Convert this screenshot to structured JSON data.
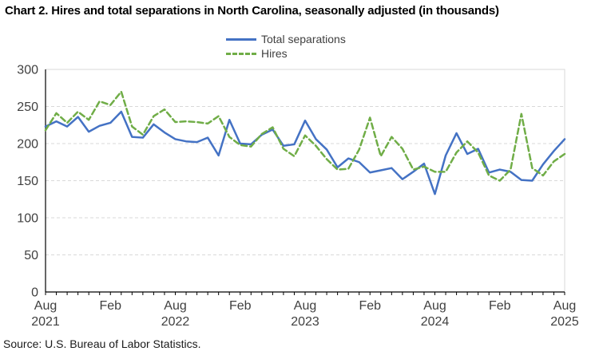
{
  "title": "Chart 2. Hires and total separations in North Carolina, seasonally adjusted (in thousands)",
  "source": "Source: U.S. Bureau of Labor Statistics.",
  "legend": [
    {
      "label": "Total separations",
      "color": "#4472c4",
      "style": "solid"
    },
    {
      "label": "Hires",
      "color": "#70ad47",
      "style": "dashed"
    }
  ],
  "chart_data": {
    "type": "line",
    "title": "Chart 2. Hires and total separations in North Carolina, seasonally adjusted (in thousands)",
    "xlabel": "",
    "ylabel": "",
    "ylim": [
      0,
      300
    ],
    "yticks": [
      0,
      50,
      100,
      150,
      200,
      250,
      300
    ],
    "grid": "horizontal-dashed",
    "legend_position": "top-center",
    "x": [
      "Aug 2021",
      "Sep 2021",
      "Oct 2021",
      "Nov 2021",
      "Dec 2021",
      "Jan 2022",
      "Feb 2022",
      "Mar 2022",
      "Apr 2022",
      "May 2022",
      "Jun 2022",
      "Jul 2022",
      "Aug 2022",
      "Sep 2022",
      "Oct 2022",
      "Nov 2022",
      "Dec 2022",
      "Jan 2023",
      "Feb 2023",
      "Mar 2023",
      "Apr 2023",
      "May 2023",
      "Jun 2023",
      "Jul 2023",
      "Aug 2023",
      "Sep 2023",
      "Oct 2023",
      "Nov 2023",
      "Dec 2023",
      "Jan 2024",
      "Feb 2024",
      "Mar 2024",
      "Apr 2024",
      "May 2024",
      "Jun 2024",
      "Jul 2024",
      "Aug 2024",
      "Sep 2024",
      "Oct 2024",
      "Nov 2024",
      "Dec 2024",
      "Jan 2025",
      "Feb 2025",
      "Mar 2025",
      "Apr 2025",
      "May 2025",
      "Jun 2025",
      "Jul 2025",
      "Aug 2025"
    ],
    "xtick_labels": [
      {
        "index": 0,
        "month": "Aug",
        "year": "2021"
      },
      {
        "index": 6,
        "month": "Feb",
        "year": ""
      },
      {
        "index": 12,
        "month": "Aug",
        "year": "2022"
      },
      {
        "index": 18,
        "month": "Feb",
        "year": ""
      },
      {
        "index": 24,
        "month": "Aug",
        "year": "2023"
      },
      {
        "index": 30,
        "month": "Feb",
        "year": ""
      },
      {
        "index": 36,
        "month": "Aug",
        "year": "2024"
      },
      {
        "index": 42,
        "month": "Feb",
        "year": ""
      },
      {
        "index": 48,
        "month": "Aug",
        "year": "2025"
      }
    ],
    "series": [
      {
        "name": "Total separations",
        "color": "#4472c4",
        "style": "solid",
        "values": [
          223,
          230,
          223,
          236,
          216,
          224,
          228,
          243,
          209,
          208,
          226,
          215,
          206,
          203,
          202,
          208,
          184,
          232,
          200,
          199,
          212,
          219,
          197,
          199,
          231,
          206,
          192,
          168,
          180,
          175,
          161,
          164,
          167,
          152,
          162,
          173,
          132,
          184,
          214,
          186,
          193,
          161,
          165,
          162,
          151,
          150,
          172,
          190,
          206
        ]
      },
      {
        "name": "Hires",
        "color": "#70ad47",
        "style": "dashed",
        "values": [
          218,
          241,
          228,
          243,
          232,
          257,
          252,
          270,
          223,
          212,
          237,
          246,
          229,
          230,
          229,
          227,
          237,
          209,
          198,
          196,
          213,
          222,
          193,
          183,
          211,
          197,
          179,
          165,
          166,
          192,
          235,
          183,
          209,
          193,
          165,
          169,
          162,
          162,
          188,
          203,
          188,
          157,
          150,
          165,
          240,
          167,
          157,
          176,
          186
        ]
      }
    ],
    "colors": {
      "axis": "#000000",
      "gridline": "#d9d9d9",
      "tick_label": "#404040"
    }
  }
}
